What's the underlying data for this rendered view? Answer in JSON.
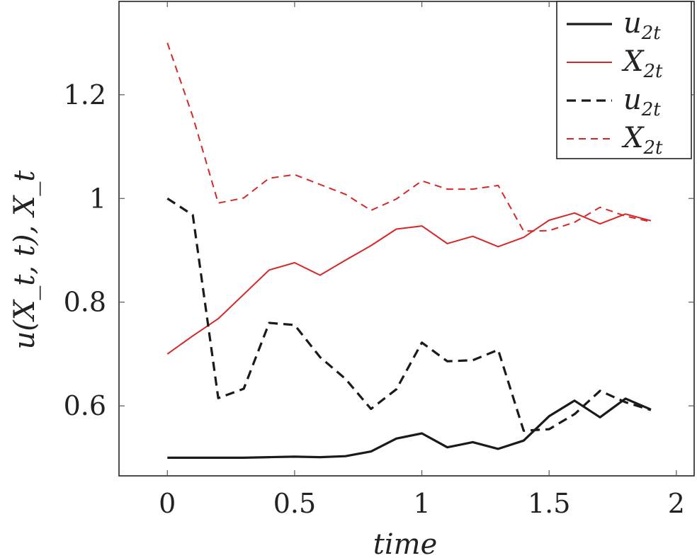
{
  "chart_data": {
    "type": "line",
    "xlabel": "time",
    "ylabel": "u(X_t, t),     X_t",
    "xlim": [
      -0.19,
      2.07
    ],
    "ylim": [
      0.465,
      1.38
    ],
    "xticks": [
      0,
      0.5,
      1,
      1.5,
      2
    ],
    "xtick_labels": [
      "0",
      "0.5",
      "1",
      "1.5",
      "2"
    ],
    "yticks": [
      0.6,
      0.8,
      1.0,
      1.2
    ],
    "ytick_labels": [
      "0.6",
      "0.8",
      "1",
      "1.2"
    ],
    "grid": false,
    "legend_position": "top-right",
    "x": [
      0,
      0.1,
      0.2,
      0.3,
      0.4,
      0.5,
      0.6,
      0.7,
      0.8,
      0.9,
      1.0,
      1.1,
      1.2,
      1.3,
      1.4,
      1.5,
      1.6,
      1.7,
      1.8,
      1.9
    ],
    "series": [
      {
        "name": "u2t",
        "legend_base": "u",
        "legend_sub": "2t",
        "color": "#1a1a1a",
        "style": "solid",
        "width": 3.2,
        "values": [
          0.5,
          0.5,
          0.5,
          0.5,
          0.501,
          0.502,
          0.501,
          0.503,
          0.512,
          0.537,
          0.547,
          0.52,
          0.53,
          0.517,
          0.533,
          0.58,
          0.61,
          0.578,
          0.614,
          0.593
        ]
      },
      {
        "name": "X2t",
        "legend_base": "X",
        "legend_sub": "2t",
        "color": "#d62728",
        "style": "solid",
        "width": 2,
        "values": [
          0.7,
          0.735,
          0.768,
          0.815,
          0.862,
          0.876,
          0.852,
          0.881,
          0.909,
          0.941,
          0.947,
          0.913,
          0.927,
          0.907,
          0.925,
          0.958,
          0.972,
          0.951,
          0.97,
          0.957
        ]
      },
      {
        "name": "u2t",
        "legend_base": "u",
        "legend_sub": "2t",
        "color": "#1a1a1a",
        "style": "dashed",
        "width": 3.2,
        "values": [
          1.0,
          0.968,
          0.615,
          0.633,
          0.76,
          0.756,
          0.694,
          0.652,
          0.594,
          0.632,
          0.722,
          0.686,
          0.688,
          0.708,
          0.552,
          0.555,
          0.584,
          0.629,
          0.607,
          0.592
        ]
      },
      {
        "name": "X2t",
        "legend_base": "X",
        "legend_sub": "2t",
        "color": "#d62728",
        "style": "dashed",
        "width": 2,
        "values": [
          1.3,
          1.158,
          0.991,
          1.001,
          1.039,
          1.046,
          1.027,
          1.008,
          0.977,
          0.999,
          1.034,
          1.018,
          1.018,
          1.025,
          0.937,
          0.938,
          0.954,
          0.983,
          0.966,
          0.955
        ]
      }
    ]
  }
}
